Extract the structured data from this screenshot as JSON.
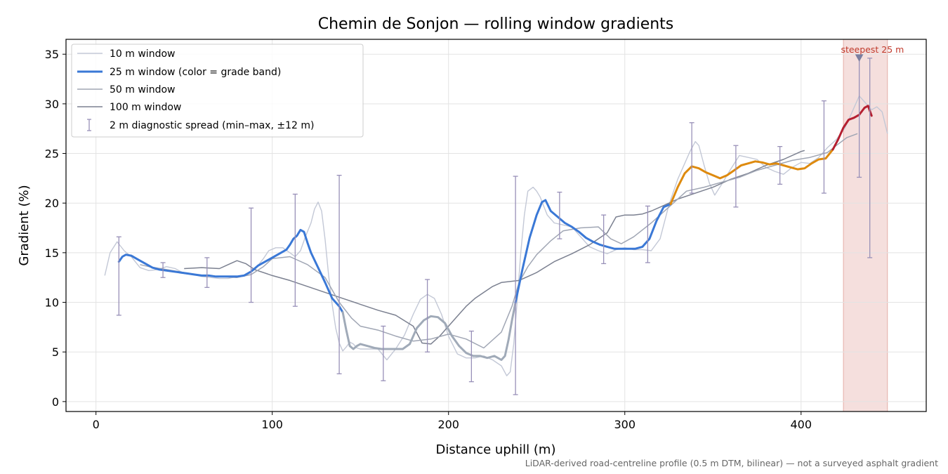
{
  "chart_data": {
    "type": "line",
    "title": "Chemin de Sonjon — rolling window gradients",
    "xlabel": "Distance uphill (m)",
    "ylabel": "Gradient (%)",
    "xlim": [
      -17,
      471
    ],
    "ylim": [
      -1,
      36.5
    ],
    "xticks": [
      0,
      100,
      200,
      300,
      400
    ],
    "yticks": [
      0,
      5,
      10,
      15,
      20,
      25,
      30,
      35
    ],
    "grid": true,
    "legend_position": "top-left",
    "footnote": "LiDAR-derived road-centreline profile (0.5 m DTM, bilinear) — not a surveyed asphalt gradient",
    "highlight": {
      "x_start": 424,
      "x_end": 449,
      "label": "steepest 25 m",
      "marker_x": 433,
      "marker_y": 34.6,
      "color": "#c0392b"
    },
    "colors": {
      "w10": "#c3c8d6",
      "w50": "#a0a6b4",
      "w100": "#7b8090",
      "band_low": "#a0aab8",
      "band_mid": "#3a78d6",
      "band_high": "#de8a0e",
      "band_steep": "#b51f30",
      "errorbar": "#9890b8"
    },
    "series": [
      {
        "name": "10 m window",
        "key": "w10",
        "x": [
          5,
          8,
          12,
          16,
          20,
          25,
          30,
          35,
          40,
          45,
          50,
          55,
          60,
          65,
          70,
          75,
          80,
          85,
          90,
          95,
          98,
          102,
          106,
          110,
          113,
          116,
          119,
          122,
          124,
          126,
          128,
          130,
          132,
          134,
          136,
          138,
          140,
          142,
          144,
          146,
          148,
          150,
          155,
          160,
          165,
          170,
          175,
          180,
          184,
          188,
          192,
          196,
          200,
          205,
          210,
          215,
          220,
          225,
          230,
          233,
          235,
          237,
          239,
          241,
          243,
          245,
          248,
          250,
          252,
          256,
          260,
          265,
          270,
          275,
          280,
          285,
          290,
          295,
          300,
          305,
          310,
          315,
          320,
          325,
          330,
          335,
          337,
          340,
          342,
          345,
          348,
          351,
          355,
          360,
          365,
          370,
          375,
          380,
          385,
          390,
          395,
          400,
          405,
          410,
          415,
          420,
          425,
          428,
          430,
          433,
          436,
          440,
          443,
          446,
          449
        ],
        "y": [
          12.7,
          15.0,
          16.1,
          15.2,
          14.6,
          13.5,
          13.2,
          13.3,
          13.6,
          13.4,
          12.9,
          12.8,
          12.6,
          12.5,
          12.4,
          12.4,
          12.6,
          12.7,
          13.3,
          14.4,
          15.2,
          15.5,
          15.5,
          15.0,
          14.6,
          15.2,
          16.7,
          18.0,
          19.4,
          20.1,
          19.2,
          16.3,
          12.7,
          9.8,
          7.4,
          5.9,
          5.1,
          5.5,
          6.0,
          5.8,
          5.4,
          5.3,
          5.3,
          5.3,
          4.2,
          5.3,
          6.7,
          8.8,
          10.3,
          10.8,
          10.4,
          8.8,
          6.6,
          4.8,
          4.4,
          4.4,
          4.6,
          4.2,
          3.6,
          2.6,
          3.0,
          5.8,
          10.2,
          15.0,
          18.8,
          21.2,
          21.6,
          21.2,
          20.6,
          18.8,
          18.0,
          17.8,
          17.6,
          16.6,
          15.6,
          15.2,
          14.9,
          15.3,
          15.5,
          15.3,
          15.3,
          15.2,
          16.4,
          19.8,
          22.4,
          24.4,
          25.2,
          26.2,
          25.8,
          23.8,
          22.0,
          20.8,
          21.9,
          23.4,
          24.8,
          24.6,
          24.4,
          23.6,
          23.2,
          22.9,
          23.6,
          24.1,
          24.0,
          24.6,
          25.6,
          26.4,
          27.6,
          28.8,
          29.6,
          30.8,
          30.2,
          29.4,
          29.7,
          29.2,
          27.0
        ]
      },
      {
        "name": "25 m window (color = grade band)",
        "key": "w25",
        "segments": [
          {
            "band": "mid",
            "x": [
              13,
              15,
              17,
              20,
              24,
              28,
              32,
              36,
              40,
              44,
              48,
              52,
              56,
              60,
              64,
              68,
              72,
              76,
              80,
              84,
              88,
              92,
              96,
              100,
              104,
              108,
              110,
              112,
              114,
              116,
              118,
              120,
              122,
              126,
              130,
              134,
              138,
              140
            ],
            "y": [
              14.1,
              14.6,
              14.8,
              14.7,
              14.3,
              13.9,
              13.5,
              13.3,
              13.2,
              13.1,
              13.0,
              12.9,
              12.8,
              12.7,
              12.7,
              12.6,
              12.6,
              12.6,
              12.6,
              12.7,
              13.1,
              13.7,
              14.1,
              14.5,
              14.9,
              15.3,
              15.8,
              16.4,
              16.7,
              17.3,
              17.1,
              16.0,
              15.0,
              13.5,
              12.0,
              10.4,
              9.6,
              9.0
            ]
          },
          {
            "band": "low",
            "x": [
              140,
              142,
              144,
              146,
              148,
              150,
              154,
              158,
              162,
              166,
              170,
              174,
              178,
              182,
              186,
              190,
              194,
              198,
              202,
              206,
              210,
              214,
              218,
              222,
              226,
              230,
              232,
              234,
              236,
              238
            ],
            "y": [
              9.0,
              7.2,
              5.6,
              5.3,
              5.6,
              5.8,
              5.6,
              5.4,
              5.3,
              5.3,
              5.3,
              5.3,
              5.8,
              7.4,
              8.2,
              8.6,
              8.5,
              7.9,
              6.6,
              5.6,
              4.9,
              4.6,
              4.6,
              4.4,
              4.6,
              4.2,
              4.6,
              6.2,
              8.2,
              10.0
            ]
          },
          {
            "band": "mid",
            "x": [
              238,
              242,
              246,
              250,
              253,
              255,
              258,
              262,
              266,
              270,
              274,
              278,
              282,
              286,
              290,
              294,
              298,
              302,
              306,
              310,
              314,
              318,
              322,
              326
            ],
            "y": [
              10.0,
              13.4,
              16.5,
              18.8,
              20.1,
              20.3,
              19.2,
              18.6,
              18.0,
              17.6,
              17.1,
              16.5,
              16.1,
              15.8,
              15.6,
              15.4,
              15.4,
              15.4,
              15.4,
              15.6,
              16.4,
              18.2,
              19.6,
              19.9
            ]
          },
          {
            "band": "high",
            "x": [
              326,
              330,
              334,
              338,
              342,
              346,
              350,
              354,
              358,
              362,
              366,
              370,
              374,
              378,
              382,
              386,
              390,
              394,
              398,
              402,
              406,
              410,
              414,
              418
            ],
            "y": [
              19.9,
              21.6,
              23.0,
              23.7,
              23.5,
              23.1,
              22.8,
              22.5,
              22.8,
              23.3,
              23.8,
              24.0,
              24.2,
              24.1,
              23.9,
              24.0,
              23.8,
              23.6,
              23.4,
              23.5,
              24.0,
              24.4,
              24.5,
              25.4
            ]
          },
          {
            "band": "steep",
            "x": [
              418,
              421,
              424,
              427,
              430,
              433,
              436,
              438,
              440
            ],
            "y": [
              25.4,
              26.4,
              27.6,
              28.4,
              28.6,
              28.9,
              29.6,
              29.8,
              28.8
            ]
          }
        ]
      },
      {
        "name": "50 m window",
        "key": "w50",
        "x": [
          25,
          30,
          40,
          50,
          60,
          70,
          80,
          88,
          95,
          100,
          110,
          120,
          130,
          138,
          145,
          150,
          160,
          170,
          180,
          190,
          200,
          210,
          220,
          230,
          236,
          240,
          245,
          250,
          258,
          265,
          275,
          285,
          292,
          298,
          305,
          315,
          325,
          335,
          345,
          355,
          365,
          375,
          385,
          395,
          405,
          415,
          420,
          426,
          432
        ],
        "y": [
          13.8,
          13.6,
          13.3,
          13.0,
          12.7,
          12.6,
          12.5,
          12.8,
          13.6,
          14.4,
          14.6,
          13.8,
          12.5,
          10.0,
          8.4,
          7.6,
          7.2,
          6.6,
          6.1,
          6.3,
          6.8,
          6.3,
          5.4,
          7.0,
          9.6,
          12.0,
          13.6,
          14.8,
          16.2,
          17.2,
          17.5,
          17.6,
          16.4,
          15.9,
          16.6,
          18.0,
          19.6,
          21.2,
          21.6,
          22.1,
          22.6,
          23.3,
          23.8,
          24.3,
          24.6,
          25.1,
          25.8,
          26.6,
          27.0
        ]
      },
      {
        "name": "100 m window",
        "key": "w100",
        "x": [
          50,
          60,
          70,
          75,
          80,
          85,
          90,
          100,
          110,
          120,
          130,
          140,
          150,
          160,
          170,
          180,
          185,
          190,
          195,
          200,
          205,
          210,
          215,
          220,
          225,
          230,
          240,
          250,
          260,
          270,
          280,
          290,
          295,
          300,
          305,
          310,
          315,
          320,
          330,
          340,
          350,
          360,
          370,
          380,
          390,
          400,
          402
        ],
        "y": [
          13.4,
          13.5,
          13.4,
          13.8,
          14.2,
          13.9,
          13.3,
          12.7,
          12.2,
          11.6,
          11.0,
          10.4,
          9.8,
          9.2,
          8.7,
          7.6,
          5.9,
          5.8,
          6.6,
          7.6,
          8.6,
          9.6,
          10.4,
          11.0,
          11.6,
          12.0,
          12.2,
          13.0,
          14.1,
          14.9,
          15.8,
          17.0,
          18.6,
          18.8,
          18.8,
          18.9,
          19.2,
          19.6,
          20.4,
          21.0,
          21.6,
          22.4,
          23.0,
          23.8,
          24.4,
          25.2,
          25.3
        ]
      }
    ],
    "errorbar_series": {
      "name": "2 m diagnostic spread (min–max, ±12 m)",
      "x": [
        13,
        38,
        63,
        88,
        113,
        138,
        163,
        188,
        213,
        238,
        263,
        288,
        313,
        338,
        363,
        388,
        413,
        433,
        439
      ],
      "y_min": [
        8.7,
        12.5,
        11.5,
        10.0,
        9.6,
        2.8,
        2.1,
        5.0,
        2.0,
        0.7,
        16.4,
        13.9,
        14.0,
        21.0,
        19.6,
        21.9,
        21.0,
        22.6,
        14.5
      ],
      "y_max": [
        16.6,
        14.0,
        14.5,
        19.5,
        20.9,
        22.8,
        7.6,
        12.3,
        7.1,
        22.7,
        21.1,
        18.8,
        19.7,
        28.1,
        25.8,
        25.7,
        30.3,
        34.7,
        34.6
      ]
    }
  }
}
